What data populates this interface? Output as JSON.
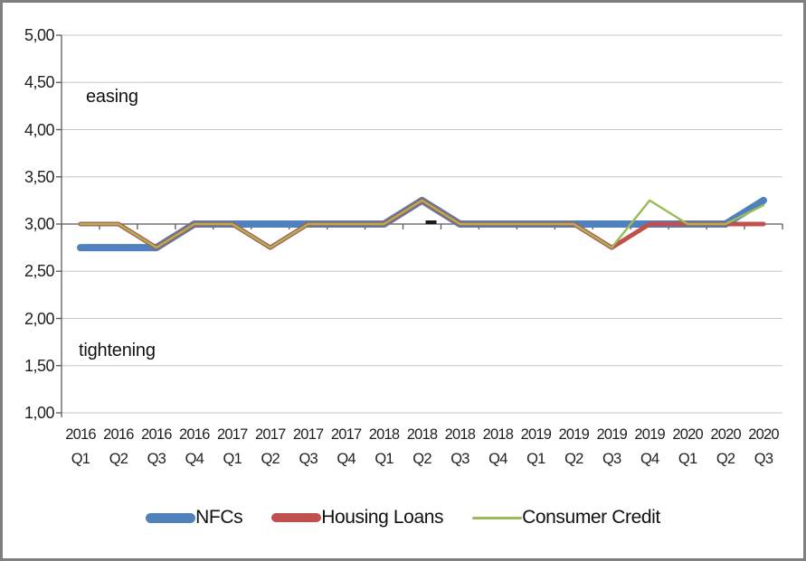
{
  "window": {
    "background": "#ffffff",
    "border_color": "#7f7f7f"
  },
  "chart_data": {
    "type": "line",
    "title": "",
    "categories": [
      {
        "year": "2016",
        "quarter": "Q1"
      },
      {
        "year": "2016",
        "quarter": "Q2"
      },
      {
        "year": "2016",
        "quarter": "Q3"
      },
      {
        "year": "2016",
        "quarter": "Q4"
      },
      {
        "year": "2017",
        "quarter": "Q1"
      },
      {
        "year": "2017",
        "quarter": "Q2"
      },
      {
        "year": "2017",
        "quarter": "Q3"
      },
      {
        "year": "2017",
        "quarter": "Q4"
      },
      {
        "year": "2018",
        "quarter": "Q1"
      },
      {
        "year": "2018",
        "quarter": "Q2"
      },
      {
        "year": "2018",
        "quarter": "Q3"
      },
      {
        "year": "2018",
        "quarter": "Q4"
      },
      {
        "year": "2019",
        "quarter": "Q1"
      },
      {
        "year": "2019",
        "quarter": "Q2"
      },
      {
        "year": "2019",
        "quarter": "Q3"
      },
      {
        "year": "2019",
        "quarter": "Q4"
      },
      {
        "year": "2020",
        "quarter": "Q1"
      },
      {
        "year": "2020",
        "quarter": "Q2"
      },
      {
        "year": "2020",
        "quarter": "Q3"
      }
    ],
    "series": [
      {
        "name": "NFCs",
        "color": "#4F81BD",
        "stroke_width": 8,
        "values": [
          2.75,
          2.75,
          2.75,
          3.0,
          3.0,
          3.0,
          3.0,
          3.0,
          3.0,
          3.25,
          3.0,
          3.0,
          3.0,
          3.0,
          3.0,
          3.0,
          3.0,
          3.0,
          3.25
        ]
      },
      {
        "name": "Housing Loans",
        "color": "#C0504D",
        "stroke_width": 5,
        "values": [
          3.0,
          3.0,
          2.75,
          3.0,
          3.0,
          2.75,
          3.0,
          3.0,
          3.0,
          3.25,
          3.0,
          3.0,
          3.0,
          3.0,
          2.75,
          3.0,
          3.0,
          3.0,
          3.0
        ]
      },
      {
        "name": "Consumer Credit",
        "color": "#9BBB59",
        "stroke_width": 2.5,
        "values": [
          3.0,
          3.0,
          2.75,
          3.0,
          3.0,
          2.75,
          3.0,
          3.0,
          3.0,
          3.25,
          3.0,
          3.0,
          3.0,
          3.0,
          2.75,
          3.25,
          3.0,
          3.0,
          3.2
        ]
      }
    ],
    "ylim": [
      1,
      5
    ],
    "ytick_step": 0.5,
    "ytick_labels": [
      "5,00",
      "4,50",
      "4,00",
      "3,50",
      "3,00",
      "2,50",
      "2,00",
      "1,50",
      "1,00"
    ],
    "axis_cross_value": 3,
    "grid": true,
    "legend_position": "bottom",
    "annotations": {
      "easing": "easing",
      "tightening": "tightening"
    },
    "colors": {
      "grid": "#c6c6c6",
      "axis": "#595959",
      "text": "#1f1f1f"
    }
  }
}
